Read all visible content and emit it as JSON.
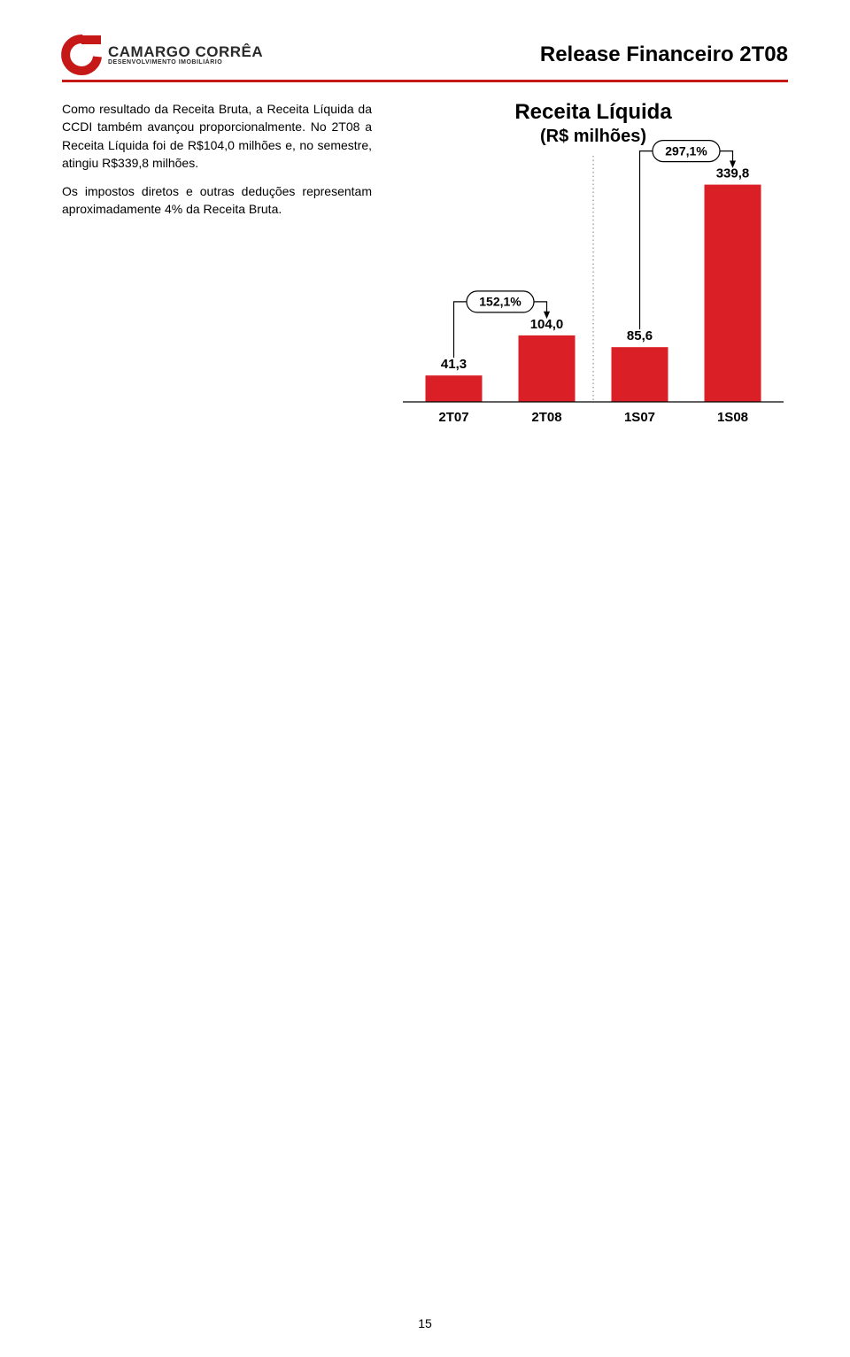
{
  "header": {
    "logo_main": "CAMARGO CORRÊA",
    "logo_sub": "DESENVOLVIMENTO IMOBILIÁRIO",
    "title": "Release Financeiro 2T08",
    "divider_color": "#c71818"
  },
  "body": {
    "para1": "Como resultado da Receita Bruta, a Receita Líquida da CCDI também avançou proporcionalmente. No 2T08 a Receita Líquida foi de R$104,0 milhões e, no semestre, atingiu R$339,8 milhões.",
    "para2": "Os impostos diretos e outras deduções representam aproximadamente 4% da Receita Bruta."
  },
  "chart": {
    "title_line1": "Receita Líquida",
    "title_line2": "(R$ milhões)",
    "categories": [
      "2T07",
      "2T08",
      "1S07",
      "1S08"
    ],
    "values": [
      41.3,
      104.0,
      85.6,
      339.8
    ],
    "value_labels": [
      "41,3",
      "104,0",
      "85,6",
      "339,8"
    ],
    "bar_color": "#da1f26",
    "annotations": [
      {
        "label": "152,1%",
        "from_idx": 0,
        "to_idx": 1
      },
      {
        "label": "297,1%",
        "from_idx": 2,
        "to_idx": 3
      }
    ],
    "ymax": 360,
    "divider_after_idx": 1
  },
  "page_number": "15"
}
